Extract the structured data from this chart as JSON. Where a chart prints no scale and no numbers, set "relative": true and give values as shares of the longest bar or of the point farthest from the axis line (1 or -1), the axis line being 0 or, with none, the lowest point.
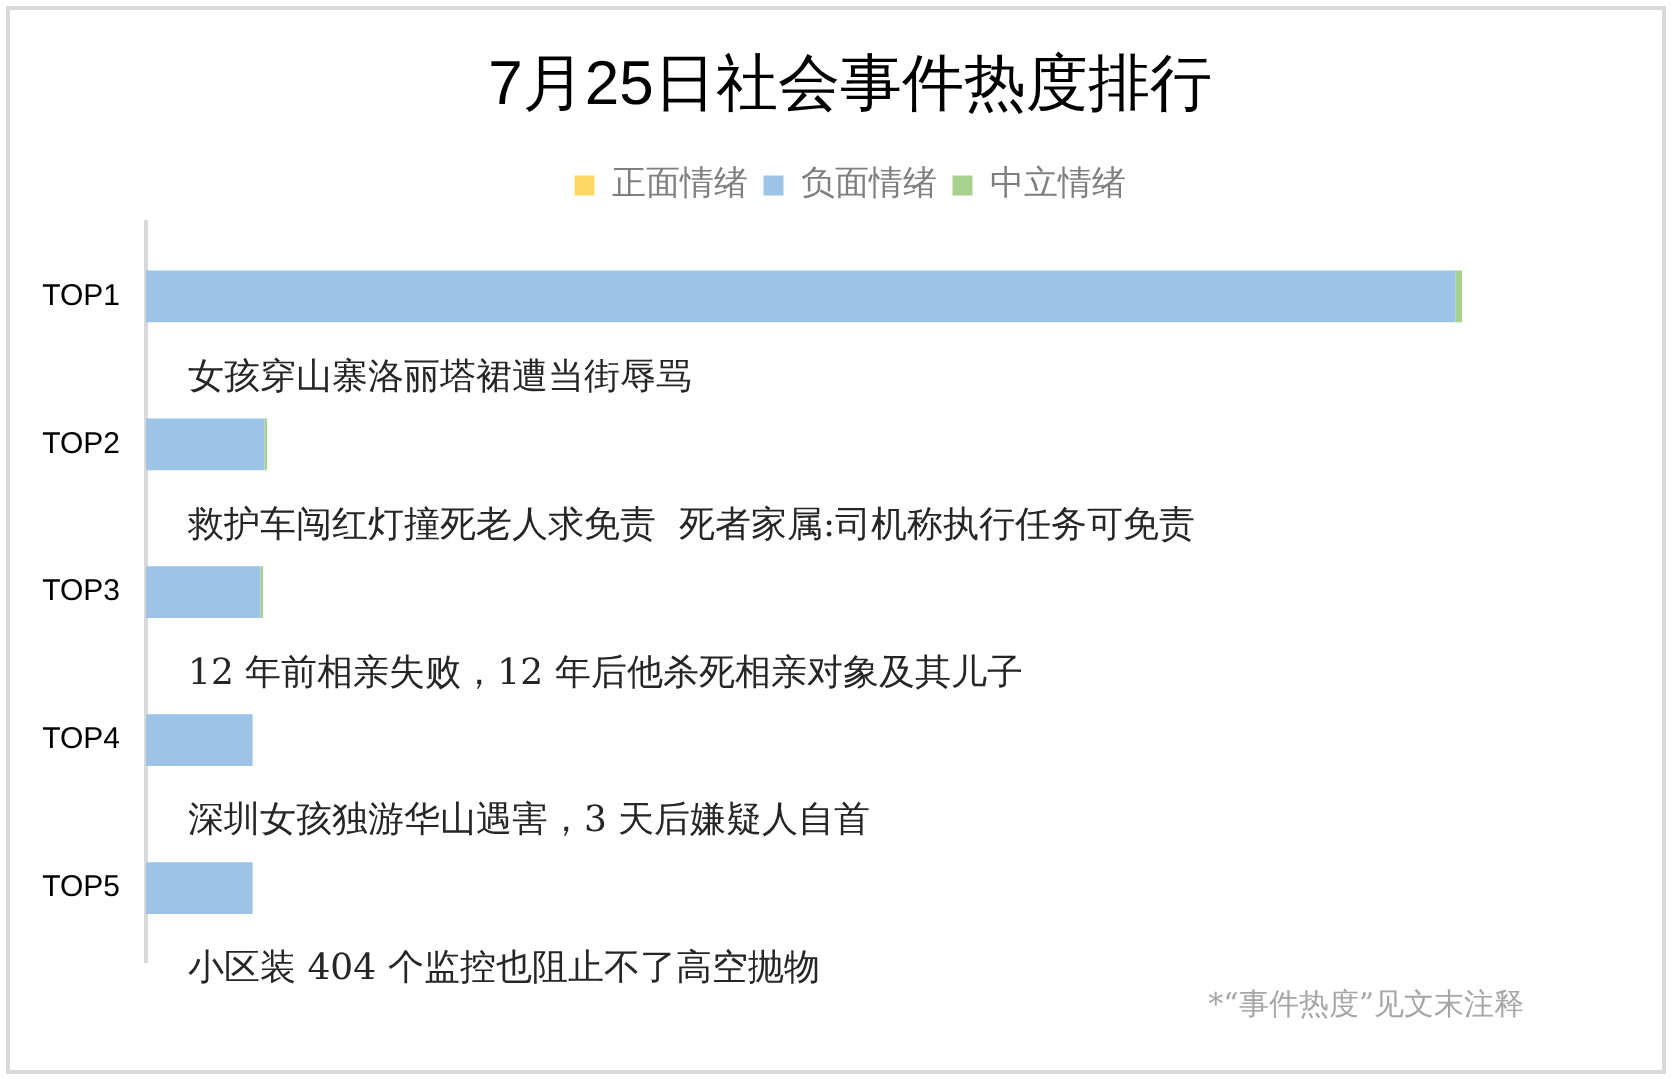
{
  "chart_data": {
    "type": "bar",
    "orientation": "horizontal",
    "stacked": true,
    "relative": true,
    "title": "7月25日社会事件热度排行",
    "categories": [
      "TOP1",
      "TOP2",
      "TOP3",
      "TOP4",
      "TOP5"
    ],
    "series": [
      {
        "name": "正面情绪",
        "color": "#ffd966",
        "values": [
          0,
          0,
          0,
          0,
          0
        ]
      },
      {
        "name": "负面情绪",
        "color": "#9dc3e6",
        "values": [
          0.995,
          0.09,
          0.087,
          0.081,
          0.081
        ]
      },
      {
        "name": "中立情绪",
        "color": "#a9d18e",
        "values": [
          0.005,
          0.002,
          0.002,
          0,
          0
        ]
      }
    ],
    "annotations": [
      "女孩穿山寨洛丽塔裙遭当街辱骂",
      "救护车闯红灯撞死老人求免责  死者家属:司机称执行任务可免责",
      "12 年前相亲失败，12 年后他杀死相亲对象及其儿子",
      "深圳女孩独游华山遇害，3 天后嫌疑人自首",
      "小区装 404 个监控也阻止不了高空抛物",
      "*“事件热度”见文末注释"
    ],
    "legend": "top",
    "grid": false
  }
}
